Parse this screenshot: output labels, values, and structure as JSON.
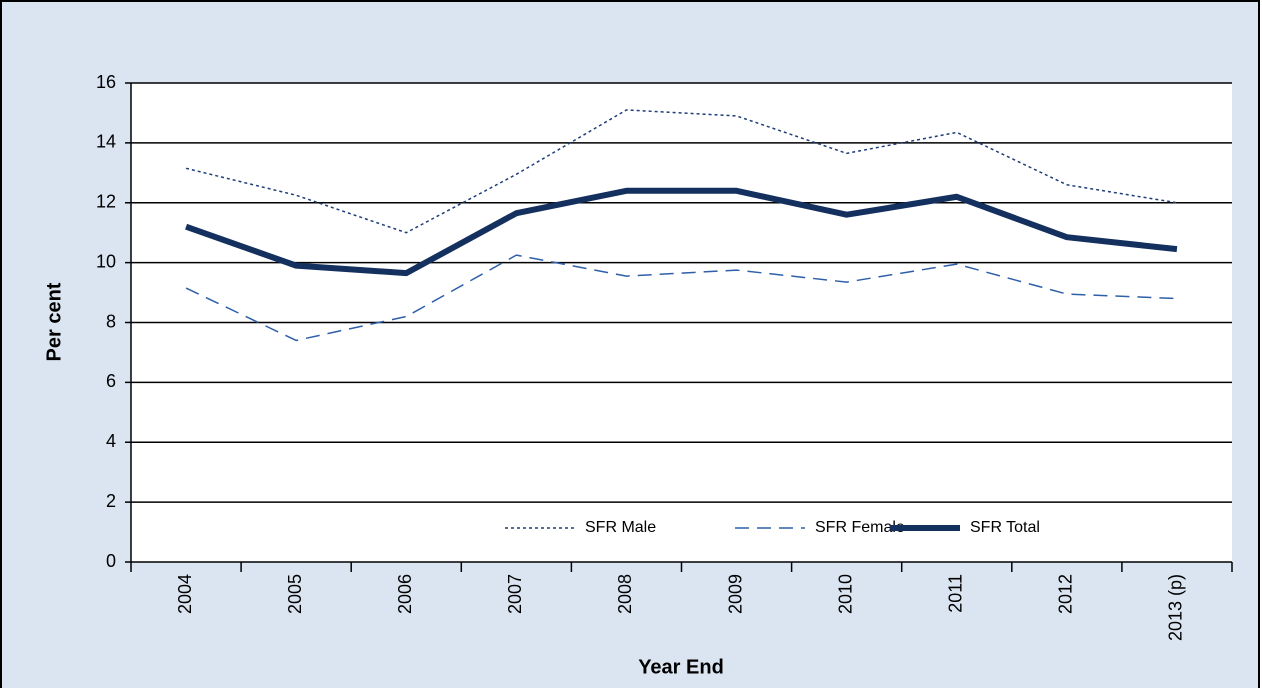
{
  "chart_data": {
    "type": "line",
    "xlabel": "Year End",
    "ylabel": "Per cent",
    "categories": [
      "2004",
      "2005",
      "2006",
      "2007",
      "2008",
      "2009",
      "2010",
      "2011",
      "2012",
      "2013 (p)"
    ],
    "series": [
      {
        "name": "SFR Male",
        "color": "#1f3d7a",
        "line_style": "dotted",
        "line_width": 1.5,
        "values": [
          13.15,
          12.25,
          11.0,
          12.95,
          15.1,
          14.9,
          13.65,
          14.35,
          12.6,
          12.0
        ]
      },
      {
        "name": "SFR Female",
        "color": "#2e5fa8",
        "line_style": "dashed",
        "line_width": 1.5,
        "values": [
          9.15,
          7.4,
          8.2,
          10.25,
          9.55,
          9.75,
          9.35,
          9.95,
          8.95,
          8.8
        ]
      },
      {
        "name": "SFR Total",
        "color": "#14305e",
        "line_style": "solid",
        "line_width": 6,
        "values": [
          11.2,
          9.9,
          9.65,
          11.65,
          12.4,
          12.4,
          11.6,
          12.2,
          10.85,
          10.45
        ]
      }
    ],
    "ylim": [
      0,
      16
    ],
    "yticks": [
      0,
      2,
      4,
      6,
      8,
      10,
      12,
      14,
      16
    ],
    "grid": true,
    "legend": "lower right"
  }
}
